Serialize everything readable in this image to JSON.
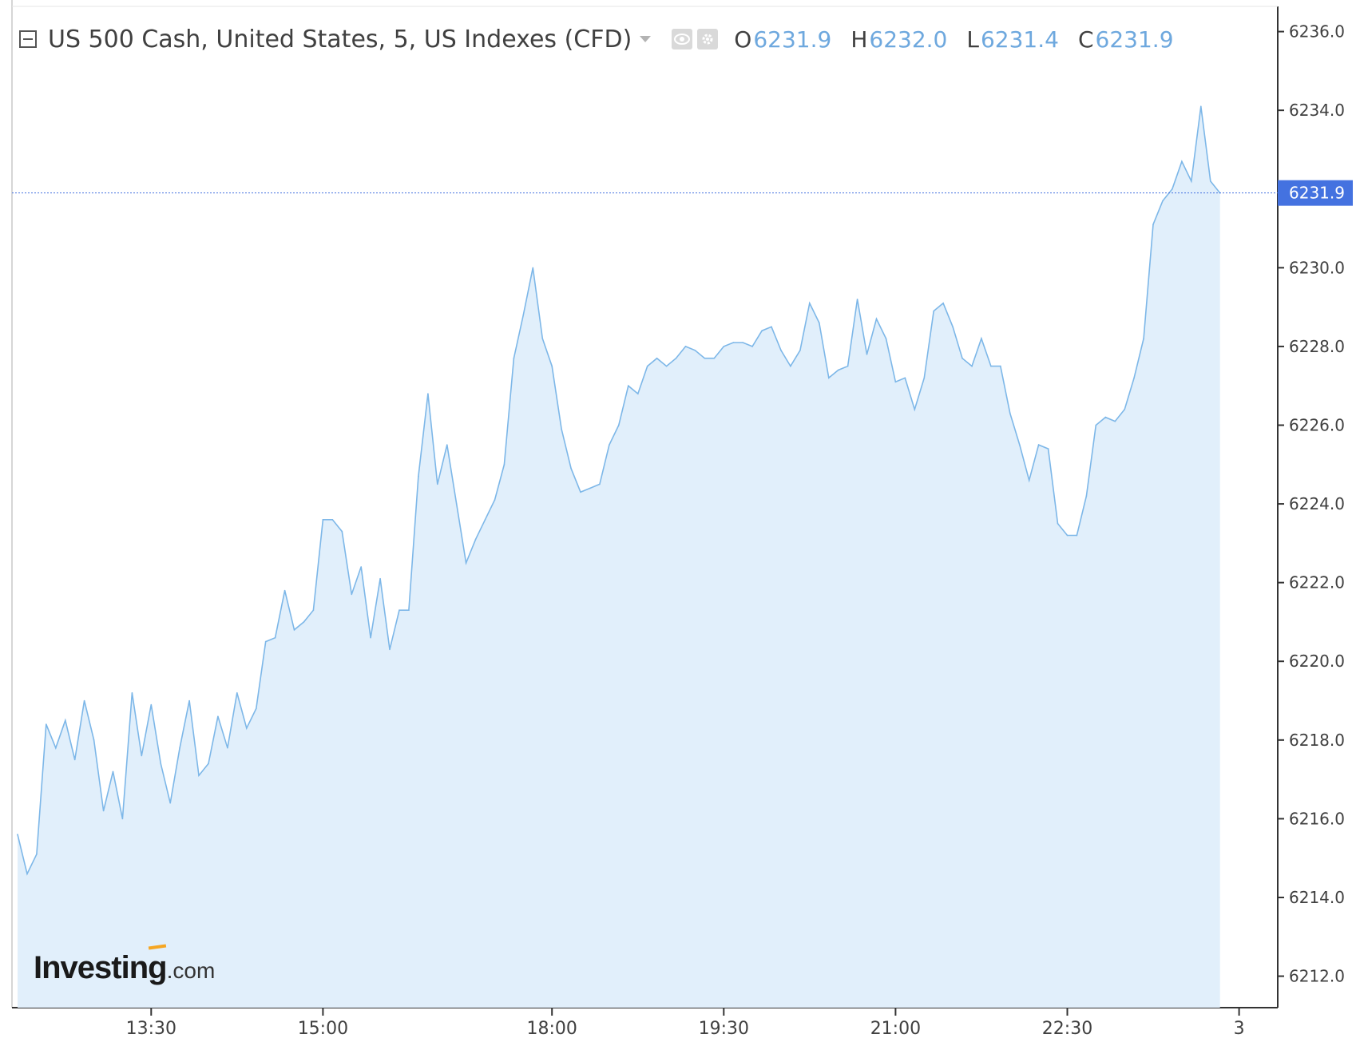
{
  "legend": {
    "symbol": "US 500 Cash, United States, 5, US Indexes (CFD)",
    "open_label": "O",
    "open": "6231.9",
    "high_label": "H",
    "high": "6232.0",
    "low_label": "L",
    "low": "6231.4",
    "close_label": "C",
    "close": "6231.9"
  },
  "logo": {
    "main": "Investing",
    "suffix": ".com"
  },
  "colors": {
    "line": "#7db7e8",
    "fill": "#e1effb",
    "price_tag": "#4472e0",
    "axis_text": "#404040"
  },
  "chart_data": {
    "type": "area",
    "title": "US 500 Cash, United States, 5, US Indexes (CFD)",
    "xlabel": "",
    "ylabel": "",
    "ylim": [
      6211.2,
      6236.6
    ],
    "y_ticks": [
      "6212.0",
      "6214.0",
      "6216.0",
      "6218.0",
      "6220.0",
      "6222.0",
      "6224.0",
      "6226.0",
      "6228.0",
      "6230.0",
      "6232.0",
      "6234.0",
      "6236.0"
    ],
    "x_ticks": [
      {
        "label": "13:30",
        "index": 14
      },
      {
        "label": "15:00",
        "index": 32
      },
      {
        "label": "18:00",
        "index": 56
      },
      {
        "label": "19:30",
        "index": 74
      },
      {
        "label": "21:00",
        "index": 92
      },
      {
        "label": "22:30",
        "index": 110
      },
      {
        "label": "3",
        "index": 128
      }
    ],
    "last_price": "6231.9",
    "grid": false,
    "series": [
      {
        "values": [
          6215.6,
          6214.6,
          6215.1,
          6218.4,
          6217.8,
          6218.5,
          6217.5,
          6219.0,
          6218.0,
          6216.2,
          6217.2,
          6216.0,
          6219.2,
          6217.6,
          6218.9,
          6217.4,
          6216.4,
          6217.8,
          6219.0,
          6217.1,
          6217.4,
          6218.6,
          6217.8,
          6219.2,
          6218.3,
          6218.8,
          6220.5,
          6220.6,
          6221.8,
          6220.8,
          6221.0,
          6221.3,
          6223.6,
          6223.6,
          6223.3,
          6221.7,
          6222.4,
          6220.6,
          6222.1,
          6220.3,
          6221.3,
          6221.3,
          6224.7,
          6226.8,
          6224.5,
          6225.5,
          6224.0,
          6222.5,
          6223.1,
          6223.6,
          6224.1,
          6225.0,
          6227.7,
          6228.8,
          6230.0,
          6228.2,
          6227.5,
          6225.9,
          6224.9,
          6224.3,
          6224.4,
          6224.5,
          6225.5,
          6226.0,
          6227.0,
          6226.8,
          6227.5,
          6227.7,
          6227.5,
          6227.7,
          6228.0,
          6227.9,
          6227.7,
          6227.7,
          6228.0,
          6228.1,
          6228.1,
          6228.0,
          6228.4,
          6228.5,
          6227.9,
          6227.5,
          6227.9,
          6229.1,
          6228.6,
          6227.2,
          6227.4,
          6227.5,
          6229.2,
          6227.8,
          6228.7,
          6228.2,
          6227.1,
          6227.2,
          6226.4,
          6227.2,
          6228.9,
          6229.1,
          6228.5,
          6227.7,
          6227.5,
          6228.2,
          6227.5,
          6227.5,
          6226.3,
          6225.5,
          6224.6,
          6225.5,
          6225.4,
          6223.5,
          6223.2,
          6223.2,
          6224.2,
          6226.0,
          6226.2,
          6226.1,
          6226.4,
          6227.2,
          6228.2,
          6231.1,
          6231.7,
          6232.0,
          6232.7,
          6232.2,
          6234.1,
          6232.2,
          6231.9
        ]
      }
    ]
  }
}
